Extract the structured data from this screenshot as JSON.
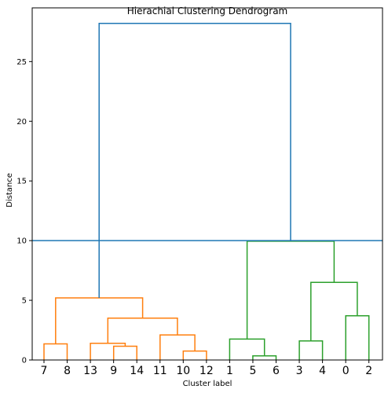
{
  "chart_data": {
    "type": "dendrogram",
    "title": "Hierachial Clustering Dendrogram",
    "xlabel": "Cluster label",
    "ylabel": "Distance",
    "ylim": [
      0,
      29.5
    ],
    "yticks": [
      0,
      5,
      10,
      15,
      20,
      25
    ],
    "leaves": [
      "7",
      "8",
      "13",
      "9",
      "14",
      "11",
      "10",
      "12",
      "1",
      "5",
      "6",
      "3",
      "4",
      "0",
      "2"
    ],
    "cut_line": {
      "y": 10.0,
      "color": "#1f77b4"
    },
    "colors": {
      "orange": "#ff7f0e",
      "green": "#2ca02c",
      "blue": "#1f77b4"
    },
    "links": [
      {
        "x": [
          1,
          1,
          2,
          2
        ],
        "y": [
          0,
          1.35,
          1.35,
          0
        ],
        "color": "orange"
      },
      {
        "x": [
          4,
          4,
          5,
          5
        ],
        "y": [
          0,
          1.15,
          1.15,
          0
        ],
        "color": "orange"
      },
      {
        "x": [
          3,
          3,
          4.5,
          4.5
        ],
        "y": [
          0,
          1.4,
          1.4,
          1.15
        ],
        "color": "orange"
      },
      {
        "x": [
          7,
          7,
          8,
          8
        ],
        "y": [
          0,
          0.75,
          0.75,
          0
        ],
        "color": "orange"
      },
      {
        "x": [
          6,
          6,
          7.5,
          7.5
        ],
        "y": [
          0,
          2.1,
          2.1,
          0.75
        ],
        "color": "orange"
      },
      {
        "x": [
          3.75,
          3.75,
          6.75,
          6.75
        ],
        "y": [
          1.4,
          3.5,
          3.5,
          2.1
        ],
        "color": "orange"
      },
      {
        "x": [
          1.5,
          1.5,
          5.25,
          5.25
        ],
        "y": [
          1.35,
          5.2,
          5.2,
          3.5
        ],
        "color": "orange"
      },
      {
        "x": [
          10,
          10,
          11,
          11
        ],
        "y": [
          0,
          0.35,
          0.35,
          0
        ],
        "color": "green"
      },
      {
        "x": [
          9,
          9,
          10.5,
          10.5
        ],
        "y": [
          0,
          1.75,
          1.75,
          0.35
        ],
        "color": "green"
      },
      {
        "x": [
          12,
          12,
          13,
          13
        ],
        "y": [
          0,
          1.6,
          1.6,
          0
        ],
        "color": "green"
      },
      {
        "x": [
          14,
          14,
          15,
          15
        ],
        "y": [
          0,
          3.7,
          3.7,
          0
        ],
        "color": "green"
      },
      {
        "x": [
          12.5,
          12.5,
          14.5,
          14.5
        ],
        "y": [
          1.6,
          6.5,
          6.5,
          3.7
        ],
        "color": "green"
      },
      {
        "x": [
          9.75,
          9.75,
          13.5,
          13.5
        ],
        "y": [
          1.75,
          9.95,
          9.95,
          6.5
        ],
        "color": "green"
      },
      {
        "x": [
          3.375,
          3.375,
          11.625,
          11.625
        ],
        "y": [
          5.2,
          28.2,
          28.2,
          9.95
        ],
        "color": "blue"
      }
    ]
  }
}
